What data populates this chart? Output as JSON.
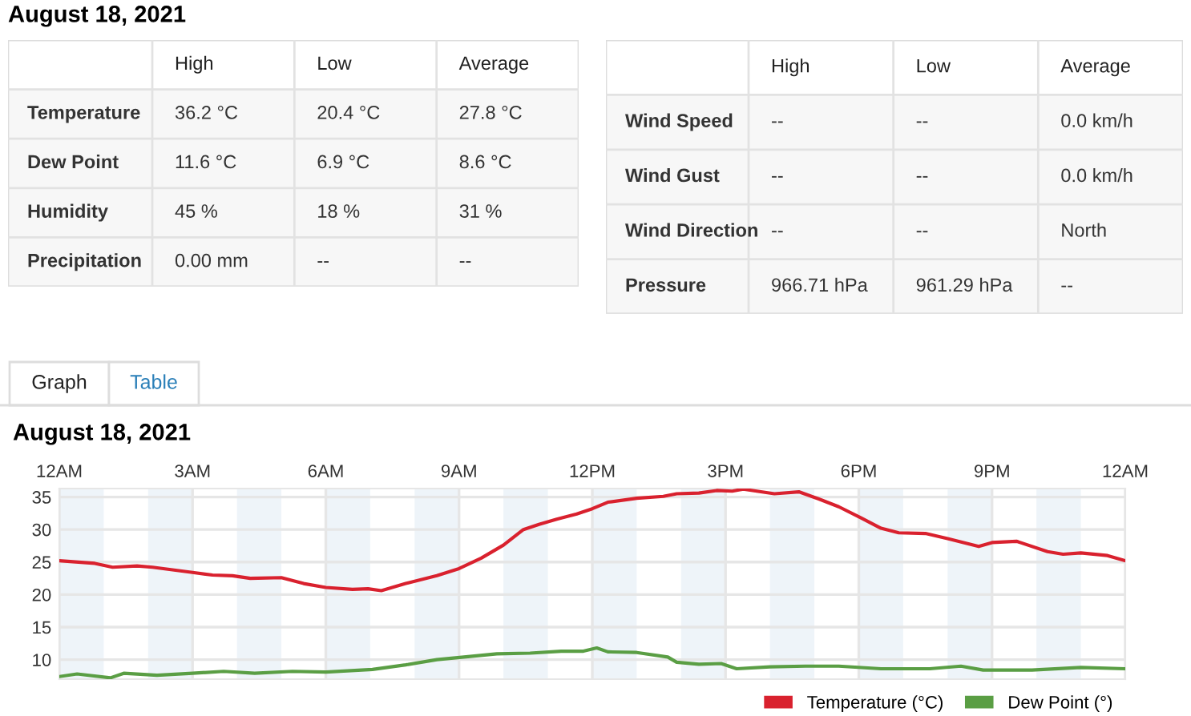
{
  "chart_data": [
    {
      "type": "other",
      "title": "August 18, 2021",
      "categories": [
        null,
        "High",
        "Low",
        "Average"
      ],
      "y_categories": [
        "Temperature",
        "Dew Point",
        "Humidity",
        "Precipitation"
      ],
      "cell_labels": [
        [
          "36.2 °C",
          "20.4 °C",
          "27.8 °C"
        ],
        [
          "11.6 °C",
          "6.9 °C",
          "8.6 °C"
        ],
        [
          "45 %",
          "18 %",
          "31 %"
        ],
        [
          "0.00 mm",
          "--",
          "--"
        ]
      ]
    },
    {
      "type": "other",
      "categories": [
        null,
        "High",
        "Low",
        "Average"
      ],
      "y_categories": [
        "Wind Speed",
        "Wind Gust",
        "Wind Direction",
        "Pressure"
      ],
      "cell_labels": [
        [
          "--",
          "--",
          "0.0 km/h"
        ],
        [
          "--",
          "--",
          "0.0 km/h"
        ],
        [
          "--",
          "--",
          "North"
        ],
        [
          "966.71 hPa",
          "961.29 hPa",
          "--"
        ]
      ]
    },
    {
      "type": "line",
      "title": "August 18, 2021",
      "annotations": [
        "Graph",
        "Table"
      ],
      "series": [
        {
          "name": "Temperature (°C)",
          "color": "#d9212e",
          "x": [
            "2021-08-18T00:00",
            "2021-08-18T00:48",
            "2021-08-18T01:12",
            "2021-08-18T01:45",
            "2021-08-18T02:06",
            "2021-08-18T03:00",
            "2021-08-18T03:27",
            "2021-08-18T03:54",
            "2021-08-18T04:18",
            "2021-08-18T05:00",
            "2021-08-18T05:30",
            "2021-08-18T06:00",
            "2021-08-18T06:36",
            "2021-08-18T06:57",
            "2021-08-18T07:15",
            "2021-08-18T07:48",
            "2021-08-18T08:30",
            "2021-08-18T09:00",
            "2021-08-18T09:30",
            "2021-08-18T10:00",
            "2021-08-18T10:27",
            "2021-08-18T10:48",
            "2021-08-18T11:12",
            "2021-08-18T11:39",
            "2021-08-18T12:00",
            "2021-08-18T12:21",
            "2021-08-18T13:00",
            "2021-08-18T13:36",
            "2021-08-18T13:54",
            "2021-08-18T14:24",
            "2021-08-18T14:48",
            "2021-08-18T15:09",
            "2021-08-18T15:24",
            "2021-08-18T16:06",
            "2021-08-18T16:39",
            "2021-08-18T17:06",
            "2021-08-18T17:33",
            "2021-08-18T18:03",
            "2021-08-18T18:30",
            "2021-08-18T18:54",
            "2021-08-18T19:30",
            "2021-08-18T20:00",
            "2021-08-18T20:42",
            "2021-08-18T21:00",
            "2021-08-18T21:33",
            "2021-08-18T22:15",
            "2021-08-18T22:36",
            "2021-08-18T23:00",
            "2021-08-18T23:36",
            "2021-08-19T00:00"
          ],
          "values": [
            25.2,
            24.8,
            24.2,
            24.4,
            24.2,
            23.4,
            23.0,
            22.9,
            22.5,
            22.6,
            21.7,
            21.1,
            20.8,
            20.9,
            20.6,
            21.7,
            22.9,
            24.0,
            25.6,
            27.6,
            30.0,
            30.8,
            31.6,
            32.4,
            33.2,
            34.2,
            34.8,
            35.1,
            35.5,
            35.6,
            36.0,
            35.9,
            36.2,
            35.5,
            35.8,
            34.7,
            33.5,
            31.8,
            30.2,
            29.5,
            29.4,
            28.6,
            27.4,
            28.0,
            28.2,
            26.6,
            26.2,
            26.4,
            26.0,
            25.2
          ]
        },
        {
          "name": "Dew Point (°)",
          "color": "#5a9e44",
          "x": [
            "2021-08-18T00:00",
            "2021-08-18T00:24",
            "2021-08-18T01:09",
            "2021-08-18T01:27",
            "2021-08-18T02:12",
            "2021-08-18T03:00",
            "2021-08-18T03:42",
            "2021-08-18T04:24",
            "2021-08-18T05:15",
            "2021-08-18T06:00",
            "2021-08-18T07:03",
            "2021-08-18T07:48",
            "2021-08-18T08:30",
            "2021-08-18T09:15",
            "2021-08-18T09:51",
            "2021-08-18T10:36",
            "2021-08-18T11:18",
            "2021-08-18T11:48",
            "2021-08-18T12:06",
            "2021-08-18T12:21",
            "2021-08-18T13:00",
            "2021-08-18T13:42",
            "2021-08-18T13:54",
            "2021-08-18T14:24",
            "2021-08-18T14:54",
            "2021-08-18T15:15",
            "2021-08-18T16:00",
            "2021-08-18T16:48",
            "2021-08-18T17:33",
            "2021-08-18T18:30",
            "2021-08-18T19:36",
            "2021-08-18T20:18",
            "2021-08-18T20:48",
            "2021-08-18T21:54",
            "2021-08-18T23:00",
            "2021-08-19T00:00"
          ],
          "values": [
            7.4,
            7.8,
            7.2,
            7.9,
            7.6,
            7.9,
            8.2,
            7.9,
            8.2,
            8.1,
            8.5,
            9.2,
            10.0,
            10.5,
            10.9,
            11.0,
            11.3,
            11.3,
            11.8,
            11.2,
            11.1,
            10.4,
            9.6,
            9.3,
            9.4,
            8.6,
            8.9,
            9.0,
            9.0,
            8.6,
            8.6,
            9.0,
            8.4,
            8.4,
            8.8,
            8.6
          ]
        }
      ],
      "xlim": [
        "2021-08-18T00:00",
        "2021-08-19T00:00"
      ],
      "xticks": [
        {
          "value": "2021-08-18T00:00",
          "label": "12AM"
        },
        {
          "value": "2021-08-18T03:00",
          "label": "3AM"
        },
        {
          "value": "2021-08-18T06:00",
          "label": "6AM"
        },
        {
          "value": "2021-08-18T09:00",
          "label": "9AM"
        },
        {
          "value": "2021-08-18T12:00",
          "label": "12PM"
        },
        {
          "value": "2021-08-18T15:00",
          "label": "3PM"
        },
        {
          "value": "2021-08-18T18:00",
          "label": "6PM"
        },
        {
          "value": "2021-08-18T21:00",
          "label": "9PM"
        },
        {
          "value": "2021-08-19T00:00",
          "label": "12AM"
        }
      ],
      "ylim": [
        7,
        36.3
      ],
      "yticks": [
        10,
        15,
        20,
        25,
        30,
        35
      ],
      "bands": [
        {
          "axis": "x",
          "from": "2021-08-18T00:00",
          "to": "2021-08-18T01:00",
          "color": "#eef4f9"
        },
        {
          "axis": "x",
          "from": "2021-08-18T02:00",
          "to": "2021-08-18T03:00",
          "color": "#eef4f9"
        },
        {
          "axis": "x",
          "from": "2021-08-18T04:00",
          "to": "2021-08-18T05:00",
          "color": "#eef4f9"
        },
        {
          "axis": "x",
          "from": "2021-08-18T06:00",
          "to": "2021-08-18T07:00",
          "color": "#eef4f9"
        },
        {
          "axis": "x",
          "from": "2021-08-18T08:00",
          "to": "2021-08-18T09:00",
          "color": "#eef4f9"
        },
        {
          "axis": "x",
          "from": "2021-08-18T10:00",
          "to": "2021-08-18T11:00",
          "color": "#eef4f9"
        },
        {
          "axis": "x",
          "from": "2021-08-18T12:00",
          "to": "2021-08-18T13:00",
          "color": "#eef4f9"
        },
        {
          "axis": "x",
          "from": "2021-08-18T14:00",
          "to": "2021-08-18T15:00",
          "color": "#eef4f9"
        },
        {
          "axis": "x",
          "from": "2021-08-18T16:00",
          "to": "2021-08-18T17:00",
          "color": "#eef4f9"
        },
        {
          "axis": "x",
          "from": "2021-08-18T18:00",
          "to": "2021-08-18T19:00",
          "color": "#eef4f9"
        },
        {
          "axis": "x",
          "from": "2021-08-18T20:00",
          "to": "2021-08-18T21:00",
          "color": "#eef4f9"
        },
        {
          "axis": "x",
          "from": "2021-08-18T22:00",
          "to": "2021-08-18T23:00",
          "color": "#eef4f9"
        }
      ],
      "grid": true,
      "legend": "bottom right",
      "marker": "none",
      "line_style": "solid"
    }
  ]
}
